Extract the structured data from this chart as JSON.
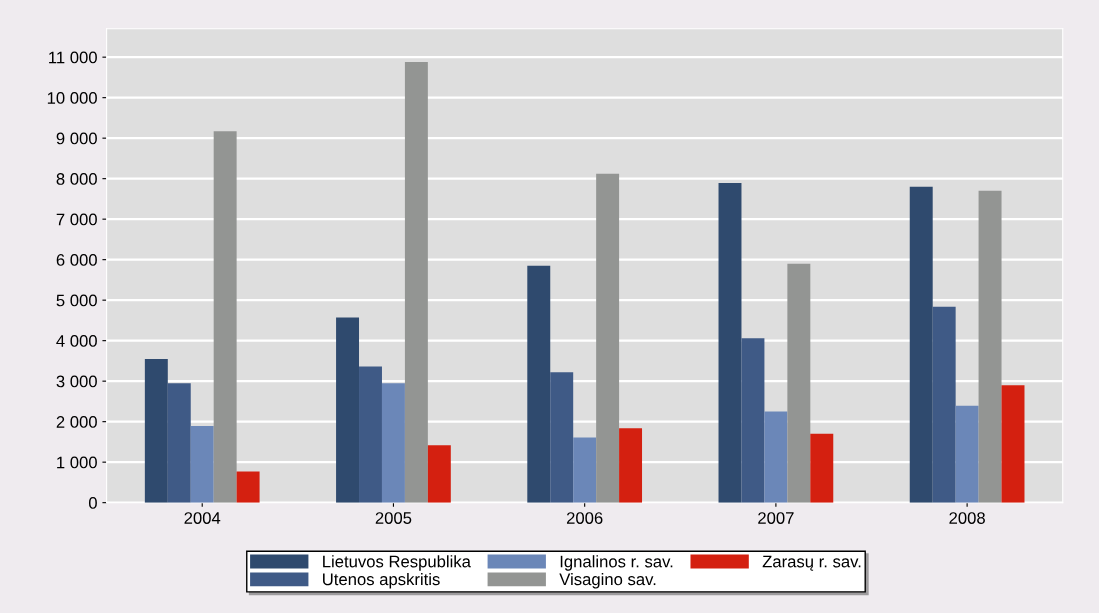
{
  "chart_data": {
    "type": "bar",
    "categories": [
      "2004",
      "2005",
      "2006",
      "2007",
      "2008"
    ],
    "series": [
      {
        "name": "Lietuvos Respublika",
        "color": "#2f4a6e",
        "values": [
          3550,
          4570,
          5850,
          7890,
          7800
        ]
      },
      {
        "name": "Utenos apskritis",
        "color": "#3f5a86",
        "values": [
          2950,
          3360,
          3220,
          4060,
          4840
        ]
      },
      {
        "name": "Ignalinos r. sav.",
        "color": "#6b87b8",
        "values": [
          1890,
          2950,
          1610,
          2250,
          2390
        ]
      },
      {
        "name": "Visagino sav.",
        "color": "#939593",
        "values": [
          9170,
          10880,
          8120,
          5900,
          7700
        ]
      },
      {
        "name": "Zarasų r. sav.",
        "color": "#d42010",
        "values": [
          770,
          1420,
          1840,
          1700,
          2900
        ]
      }
    ],
    "ylim": [
      0,
      11700
    ],
    "yticks": [
      0,
      {
        "value": 1000,
        "label": "1 000"
      },
      {
        "value": 2000,
        "label": "2 000"
      },
      {
        "value": 3000,
        "label": "3 000"
      },
      {
        "value": 4000,
        "label": "4 000"
      },
      {
        "value": 5000,
        "label": "5 000"
      },
      {
        "value": 6000,
        "label": "6 000"
      },
      {
        "value": 7000,
        "label": "7 000"
      },
      {
        "value": 8000,
        "label": "8 000"
      },
      {
        "value": 9000,
        "label": "9 000"
      },
      {
        "value": 10000,
        "label": "10 000"
      },
      {
        "value": 11000,
        "label": "11 000"
      }
    ],
    "grid": "y",
    "legend": "bottom"
  }
}
